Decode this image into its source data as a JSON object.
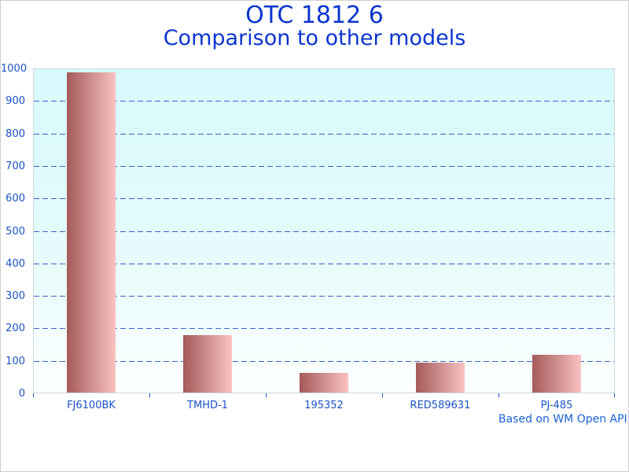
{
  "header": {
    "title": "OTC 1812 6",
    "subtitle": "Comparison to other models"
  },
  "footer": {
    "note": "Based on WM Open API"
  },
  "chart_data": {
    "type": "bar",
    "title": "OTC 1812 6",
    "subtitle": "Comparison to other models",
    "categories": [
      "FJ6100BK",
      "TMHD-1",
      "195352",
      "RED589631",
      "PJ-485"
    ],
    "values": [
      990,
      178,
      60,
      93,
      116
    ],
    "xlabel": "",
    "ylabel": "",
    "ylim": [
      0,
      1000
    ],
    "yticks": [
      0,
      100,
      200,
      300,
      400,
      500,
      600,
      700,
      800,
      900,
      1000
    ],
    "grid": "horizontal-dashed",
    "legend": "none",
    "annotation": "Based on WM Open API",
    "colors": {
      "title_text": "#0b35cf",
      "tick_label_text": "#1a52c8",
      "footer_text": "#1a62d4",
      "gridline": "#3a63c8",
      "bar_gradient_left": "#a65a5a",
      "bar_gradient_right": "#fbc2c2",
      "plot_bg_top": "#d7fafc",
      "plot_bg_bottom": "#fcffff",
      "plot_border": "#ccd8da"
    }
  }
}
